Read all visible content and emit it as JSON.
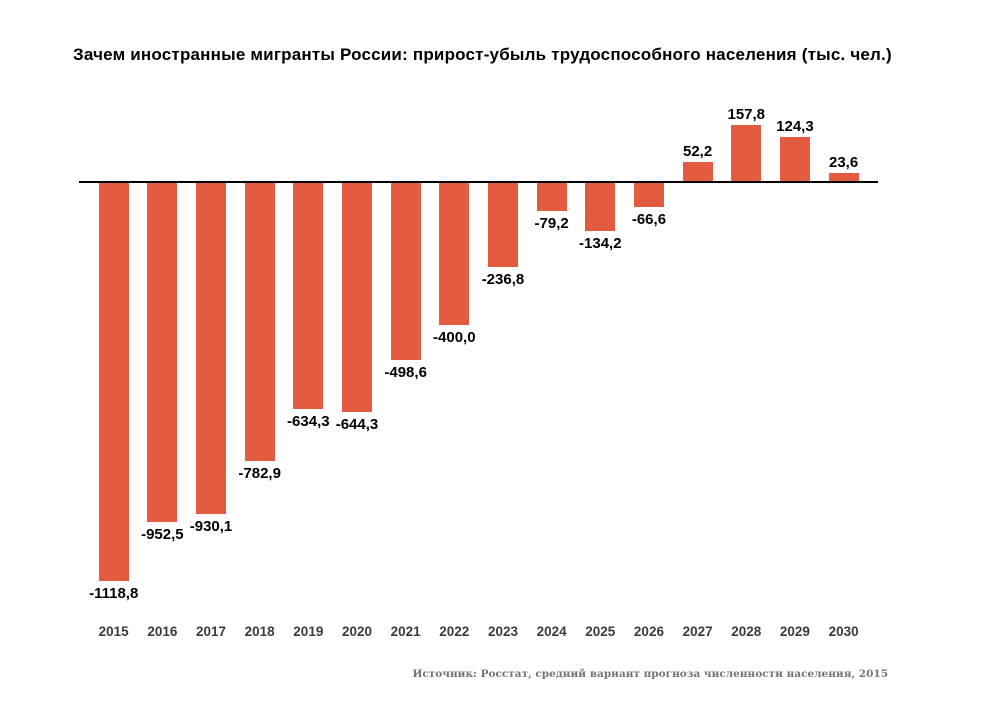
{
  "title": "Зачем иностранные мигранты России: прирост-убыль трудоспособного населения (тыс. чел.)",
  "source": "Источник: Росстат, средний вариант прогноза численности населения, 2015",
  "colors": {
    "bar": "#e45c40",
    "axis": "#000000",
    "title_text": "#000000",
    "value_label_text": "#000000",
    "year_label_text": "#3b3b3b",
    "source_text": "#757575",
    "background": "#ffffff"
  },
  "chart_data": {
    "type": "bar",
    "title": "Зачем иностранные мигранты России: прирост-убыль трудоспособного населения (тыс. чел.)",
    "xlabel": "",
    "ylabel": "",
    "unit": "тыс. чел.",
    "categories": [
      "2015",
      "2016",
      "2017",
      "2018",
      "2019",
      "2020",
      "2021",
      "2022",
      "2023",
      "2024",
      "2025",
      "2026",
      "2027",
      "2028",
      "2029",
      "2030"
    ],
    "values": [
      -1118.8,
      -952.5,
      -930.1,
      -782.9,
      -634.3,
      -644.3,
      -498.6,
      -400.0,
      -236.8,
      -79.2,
      -134.2,
      -66.6,
      52.2,
      157.8,
      124.3,
      23.6
    ],
    "value_labels": [
      "-1118,8",
      "-952,5",
      "-930,1",
      "-782,9",
      "-634,3",
      "-644,3",
      "-498,6",
      "-400,0",
      "-236,8",
      "-79,2",
      "-134,2",
      "-66,6",
      "52,2",
      "157,8",
      "124,3",
      "23,6"
    ],
    "data_labels": "on",
    "grid": "off",
    "legend": "none",
    "baseline": 0,
    "ylim": [
      -1200,
      250
    ],
    "source": "Источник: Росстат, средний вариант прогноза численности населения, 2015"
  }
}
